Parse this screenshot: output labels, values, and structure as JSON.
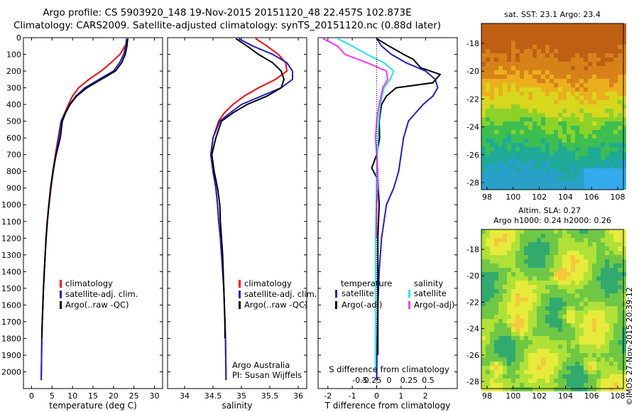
{
  "header": {
    "title_line1": "Argo profile: CS 5903920_148 19-Nov-2015 20151120_48 22.457S 102.873E",
    "title_line2": "Climatology: CARS2009. Satellite-adjusted climatology: synTS_20151120.nc (0.88d later)"
  },
  "colors": {
    "climatology": "#ff0000",
    "satellite": "#1f1fcf",
    "argo": "#000000",
    "salinity_satellite": "#22e6e6",
    "salinity_argo": "#ff33ff"
  },
  "legend_icons": {
    "swatch": "vertical-color-bar"
  },
  "chart_data": [
    {
      "type": "line",
      "name": "temperature-panel",
      "xlabel": "temperature (deg C)",
      "ylabel": "",
      "xlim": [
        -2,
        32
      ],
      "xticks": [
        0,
        5,
        10,
        15,
        20,
        25,
        30
      ],
      "ylim": [
        2100,
        0
      ],
      "yticks": [
        0,
        100,
        200,
        300,
        400,
        500,
        600,
        700,
        800,
        900,
        1000,
        1100,
        1200,
        1300,
        1400,
        1500,
        1600,
        1700,
        1800,
        1900,
        2000
      ],
      "legend": [
        "climatology",
        "satellite-adj. clim.",
        "Argo(..raw -QC)"
      ],
      "series": [
        {
          "name": "climatology",
          "color": "#ff0000",
          "x": [
            23.5,
            23.3,
            22.8,
            21.6,
            19.4,
            17.0,
            14.0,
            11.5,
            10.0,
            9.0,
            8.1,
            7.2,
            6.5,
            5.8,
            5.2,
            4.6,
            4.2,
            3.8,
            3.5,
            3.3,
            3.1,
            2.9,
            2.75,
            2.6,
            2.5,
            2.35
          ],
          "y": [
            5,
            25,
            50,
            100,
            150,
            200,
            250,
            300,
            350,
            400,
            450,
            500,
            600,
            700,
            800,
            900,
            1000,
            1100,
            1200,
            1300,
            1400,
            1500,
            1600,
            1700,
            1800,
            2050
          ]
        },
        {
          "name": "satellite-adj. clim.",
          "color": "#1f1fcf",
          "x": [
            23.2,
            23.1,
            23.0,
            22.5,
            21.5,
            20.0,
            16.5,
            13.0,
            10.8,
            9.3,
            8.2,
            7.2,
            6.6,
            5.9,
            5.3,
            4.7,
            4.25,
            3.85,
            3.55,
            3.3,
            3.1,
            2.9,
            2.75,
            2.6,
            2.5,
            2.35
          ],
          "y": [
            5,
            25,
            50,
            100,
            150,
            200,
            250,
            300,
            350,
            400,
            450,
            500,
            600,
            700,
            800,
            900,
            1000,
            1100,
            1200,
            1300,
            1400,
            1500,
            1600,
            1700,
            1800,
            2050
          ]
        },
        {
          "name": "Argo(..raw -QC)",
          "color": "#000000",
          "x": [
            23.5,
            23.4,
            23.3,
            22.9,
            22.0,
            20.5,
            17.0,
            13.5,
            11.0,
            9.4,
            8.3,
            7.5,
            7.0,
            6.0,
            5.2,
            4.7,
            4.25,
            3.85,
            3.55,
            3.3,
            3.1,
            2.9,
            2.75,
            2.6,
            2.5
          ],
          "y": [
            5,
            25,
            50,
            100,
            150,
            200,
            250,
            300,
            350,
            400,
            450,
            500,
            600,
            700,
            800,
            900,
            1000,
            1100,
            1200,
            1300,
            1400,
            1500,
            1600,
            1700,
            1800
          ]
        }
      ]
    },
    {
      "type": "line",
      "name": "salinity-panel",
      "xlabel": "salinity",
      "xlim": [
        33.7,
        36.15
      ],
      "xticks": [
        34,
        34.5,
        35,
        35.5,
        36
      ],
      "ylim": [
        2100,
        0
      ],
      "legend": [
        "climatology",
        "satellite-adj. clim.",
        "Argo(..raw -QC)"
      ],
      "annotation": [
        "Argo Australia",
        "PI: Susan Wijffels"
      ],
      "series": [
        {
          "name": "climatology",
          "color": "#ff0000",
          "x": [
            35.25,
            35.45,
            35.65,
            35.78,
            35.8,
            35.6,
            35.3,
            35.05,
            34.85,
            34.7,
            34.6,
            34.5,
            34.47,
            34.5,
            34.55,
            34.58,
            34.6,
            34.63,
            34.65,
            34.67,
            34.69,
            34.7,
            34.71,
            34.72,
            34.73
          ],
          "y": [
            5,
            50,
            100,
            150,
            200,
            250,
            300,
            350,
            400,
            450,
            500,
            600,
            700,
            800,
            900,
            1000,
            1100,
            1200,
            1300,
            1400,
            1500,
            1600,
            1700,
            1800,
            2050
          ]
        },
        {
          "name": "satellite-adj. clim.",
          "color": "#1f1fcf",
          "x": [
            34.95,
            35.2,
            35.55,
            35.8,
            35.9,
            35.9,
            35.7,
            35.35,
            35.0,
            34.8,
            34.62,
            34.5,
            34.46,
            34.5,
            34.55,
            34.58,
            34.6,
            34.63,
            34.65,
            34.67,
            34.69,
            34.7,
            34.71,
            34.72,
            34.73
          ],
          "y": [
            5,
            50,
            100,
            150,
            200,
            250,
            300,
            350,
            400,
            450,
            500,
            600,
            700,
            800,
            900,
            1000,
            1100,
            1200,
            1300,
            1400,
            1500,
            1600,
            1700,
            1800,
            2050
          ]
        },
        {
          "name": "Argo(..raw -QC)",
          "color": "#000000",
          "x": [
            34.9,
            35.1,
            35.3,
            35.55,
            35.7,
            35.75,
            35.7,
            35.45,
            35.1,
            34.85,
            34.65,
            34.55,
            34.48,
            34.52,
            34.58,
            34.62,
            34.63,
            34.65,
            34.67,
            34.68,
            34.69,
            34.7,
            34.71,
            34.71
          ],
          "y": [
            5,
            50,
            100,
            150,
            200,
            250,
            300,
            350,
            400,
            450,
            500,
            600,
            700,
            800,
            900,
            1000,
            1100,
            1200,
            1300,
            1400,
            1500,
            1600,
            1700,
            1800
          ]
        }
      ]
    },
    {
      "type": "line",
      "name": "difference-panel",
      "xlabel_top": "S difference from climatology",
      "xticks_top": [
        -0.5,
        -0.25,
        0,
        0.25,
        0.5
      ],
      "xlabel": "T difference from climatology",
      "xlim": [
        -2.4,
        3.3
      ],
      "xticks": [
        -2,
        -1,
        0,
        1,
        2
      ],
      "ylim": [
        2100,
        0
      ],
      "legend_groups": {
        "temperature_title": "temperature",
        "salinity_title": "salinity",
        "temperature": [
          "satellite",
          "Argo(-adj)"
        ],
        "salinity": [
          "satellite",
          "Argo(-adj)"
        ]
      },
      "series": [
        {
          "name": "T satellite",
          "color": "#1f1fcf",
          "x": [
            0.0,
            0.2,
            0.6,
            1.2,
            2.0,
            2.4,
            2.5,
            2.3,
            1.9,
            1.6,
            1.3,
            1.1,
            1.0,
            0.9,
            0.7,
            0.4,
            0.2,
            0.1,
            0.05,
            0.02,
            0.0
          ],
          "y": [
            5,
            50,
            100,
            150,
            200,
            250,
            300,
            350,
            400,
            450,
            500,
            600,
            700,
            800,
            900,
            1000,
            1200,
            1400,
            1600,
            1800,
            2050
          ]
        },
        {
          "name": "T Argo(-adj)",
          "color": "#000000",
          "x": [
            0.0,
            0.5,
            1.1,
            1.5,
            1.8,
            2.6,
            2.3,
            0.8,
            0.4,
            0.2,
            0.15,
            0.1,
            0.12,
            0.0,
            -0.2,
            0.05,
            0.1,
            0.05,
            0.05,
            0.05,
            0.05,
            0.05
          ],
          "y": [
            5,
            50,
            100,
            130,
            180,
            220,
            270,
            300,
            350,
            400,
            450,
            500,
            600,
            700,
            780,
            850,
            1000,
            1200,
            1400,
            1600,
            1800,
            1900
          ]
        },
        {
          "name": "S satellite",
          "color": "#22e6e6",
          "x": [
            -1.6,
            -1.0,
            -0.4,
            0.3,
            0.7,
            0.55,
            0.3,
            0.15,
            0.08,
            0.05,
            0.03,
            0.0,
            -0.02,
            -0.05,
            -0.05,
            -0.05,
            -0.05
          ],
          "y": [
            5,
            50,
            100,
            150,
            200,
            250,
            300,
            400,
            500,
            600,
            700,
            800,
            1000,
            1200,
            1400,
            1600,
            2000
          ]
        },
        {
          "name": "S Argo(-adj)",
          "color": "#ff33ff",
          "x": [
            -2.2,
            -1.6,
            -1.3,
            -0.4,
            0.4,
            0.45,
            0.25,
            0.1,
            0.0,
            -0.05,
            0.0,
            0.05,
            0.05,
            0.0,
            0.0
          ],
          "y": [
            5,
            50,
            100,
            150,
            200,
            250,
            300,
            400,
            500,
            600,
            700,
            800,
            900,
            1000,
            1200
          ]
        }
      ]
    },
    {
      "type": "heatmap",
      "name": "sst-map",
      "title": "sat. SST: 23.1  Argo: 23.4",
      "xticks": [
        98,
        100,
        102,
        104,
        106,
        108
      ],
      "yticks": [
        -18,
        -20,
        -22,
        -24,
        -26,
        -28
      ]
    },
    {
      "type": "heatmap",
      "name": "sla-map",
      "title_line1": "Altim. SLA: 0.27",
      "title_line2": "Argo h1000: 0.24 h2000: 0.26",
      "xticks": [
        98,
        100,
        102,
        104,
        106,
        108
      ],
      "yticks": [
        -18,
        -20,
        -22,
        -24,
        -26,
        -28
      ]
    }
  ],
  "footer": {
    "signature": "©IMOS 27-Nov-2015 20:39:12"
  }
}
